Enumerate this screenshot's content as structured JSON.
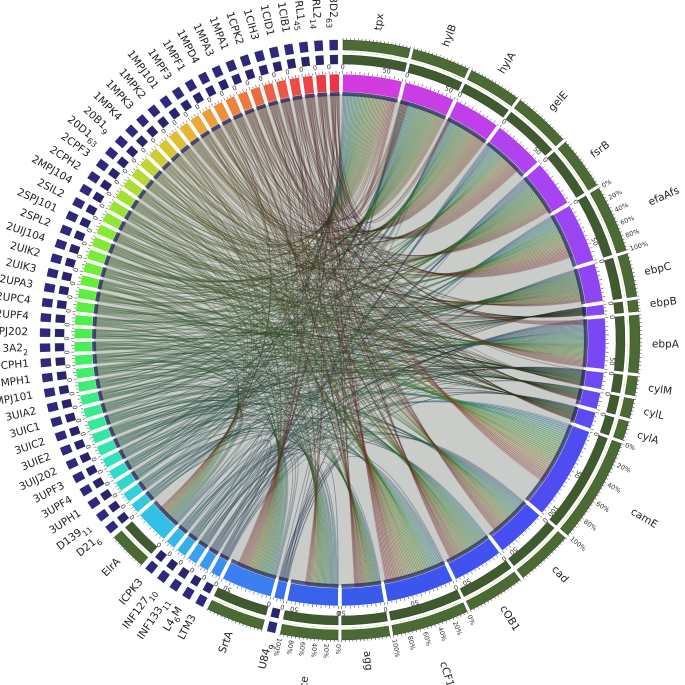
{
  "figure": {
    "type": "circos-chord-diagram",
    "description": "Circular chord diagram linking enterococcal strains (left/bottom arcs) to virulence/pheromone genes (right/top arcs)"
  },
  "colors": {
    "background": "#ffffff",
    "strain_outer_tracks": "#2a2370",
    "gene_outer_tracks": "#3f5a2e",
    "ribbon_base": "#2f3a2a"
  },
  "segments": [
    {
      "id": "tpx",
      "label": "tpx",
      "group": "gene",
      "size": 70,
      "color": "#d23be0",
      "ticks": [
        "0",
        "50"
      ]
    },
    {
      "id": "hylB",
      "label": "hylB",
      "group": "gene",
      "size": 60,
      "color": "#c83ee6",
      "ticks": [
        "0",
        "50"
      ]
    },
    {
      "id": "hylA",
      "label": "hylA",
      "group": "gene",
      "size": 55,
      "color": "#bf40ea",
      "ticks": [
        "0"
      ]
    },
    {
      "id": "gelE",
      "label": "gelE",
      "group": "gene",
      "size": 60,
      "color": "#b241ee",
      "ticks": [
        "0",
        "50"
      ]
    },
    {
      "id": "fsrB",
      "label": "fsrB",
      "group": "gene",
      "size": 55,
      "color": "#a743f0",
      "ticks": [
        "0"
      ]
    },
    {
      "id": "efaAfs",
      "label": "efaAfs",
      "group": "gene",
      "size": 70,
      "color": "#9b44f2",
      "ticks": [
        "0",
        "50"
      ],
      "pct_scale": [
        "0%",
        "20%",
        "40%",
        "60%",
        "80%",
        "100%"
      ]
    },
    {
      "id": "ebpC",
      "label": "ebpC",
      "group": "gene",
      "size": 45,
      "color": "#8f46f2",
      "ticks": [
        "0"
      ]
    },
    {
      "id": "ebpB",
      "label": "ebpB",
      "group": "gene",
      "size": 12,
      "color": "#8447f2",
      "ticks": [
        "0"
      ]
    },
    {
      "id": "ebpA",
      "label": "ebpA",
      "group": "gene",
      "size": 60,
      "color": "#7a48f2",
      "ticks": [
        "0",
        "50"
      ]
    },
    {
      "id": "cylM",
      "label": "cylM",
      "group": "gene",
      "size": 20,
      "color": "#6f49f2",
      "ticks": [
        "0"
      ]
    },
    {
      "id": "cylL",
      "label": "cylL",
      "group": "gene",
      "size": 20,
      "color": "#654af2",
      "ticks": [
        "0"
      ]
    },
    {
      "id": "cylA",
      "label": "cylA",
      "group": "gene",
      "size": 20,
      "color": "#5b4bf2",
      "ticks": [
        "0"
      ]
    },
    {
      "id": "camE",
      "label": "camE",
      "group": "gene",
      "size": 110,
      "color": "#4f4cf2",
      "ticks": [
        "0",
        "50",
        "100"
      ],
      "pct_scale": [
        "0%",
        "20%",
        "40%",
        "60%",
        "80%",
        "100%"
      ]
    },
    {
      "id": "cad",
      "label": "cad",
      "group": "gene",
      "size": 60,
      "color": "#474ff2",
      "ticks": [
        "0",
        "50"
      ]
    },
    {
      "id": "cOB1",
      "label": "cOB1",
      "group": "gene",
      "size": 60,
      "color": "#4152f0",
      "ticks": [
        "0",
        "50"
      ]
    },
    {
      "id": "cCF10",
      "label": "cCF10",
      "group": "gene",
      "size": 80,
      "color": "#3b55ee",
      "ticks": [
        "0",
        "50"
      ],
      "pct_scale": [
        "0%",
        "20%",
        "40%",
        "60%",
        "80%",
        "100%"
      ]
    },
    {
      "id": "agg",
      "label": "agg",
      "group": "gene",
      "size": 50,
      "color": "#395bec",
      "ticks": [
        "0",
        "50"
      ]
    },
    {
      "id": "ace",
      "label": "ace",
      "group": "gene",
      "size": 60,
      "color": "#3862ea",
      "ticks": [
        "0",
        "50"
      ],
      "pct_scale": [
        "0%",
        "20%",
        "40%",
        "60%",
        "80%",
        "100%"
      ]
    },
    {
      "id": "U84_9",
      "label": "U84",
      "sub": "9",
      "group": "strain",
      "size": 12,
      "color": "#3a6ff0",
      "ticks": [
        "0"
      ]
    },
    {
      "id": "SrtA",
      "label": "SrtA",
      "group": "gene",
      "size": 60,
      "color": "#3a7ef0",
      "ticks": [
        "0",
        "50"
      ]
    },
    {
      "id": "LTM3",
      "label": "LTM3",
      "group": "strain",
      "size": 12,
      "color": "#3a8cf0",
      "ticks": [
        "0"
      ]
    },
    {
      "id": "L4_6M",
      "label": "L4",
      "sub": "6",
      "suffix": "M",
      "group": "strain",
      "size": 12,
      "color": "#3a98ee",
      "ticks": [
        "0"
      ]
    },
    {
      "id": "INF133_11",
      "label": "INF133",
      "sub": "11",
      "group": "strain",
      "size": 12,
      "color": "#38a3ec",
      "ticks": [
        "0"
      ]
    },
    {
      "id": "INF127_10",
      "label": "INF127",
      "sub": "10",
      "group": "strain",
      "size": 12,
      "color": "#36aeea",
      "ticks": [
        "0"
      ]
    },
    {
      "id": "ICPK3",
      "label": "ICPK3",
      "group": "strain",
      "size": 12,
      "color": "#34b8e8",
      "ticks": [
        "0"
      ]
    },
    {
      "id": "ElrA",
      "label": "ElrA",
      "group": "gene",
      "size": 40,
      "color": "#33c0e6",
      "ticks": [
        "0"
      ]
    },
    {
      "id": "D21_6",
      "label": "D21",
      "sub": "6",
      "group": "strain",
      "size": 12,
      "color": "#33c8e0",
      "ticks": [
        "0"
      ]
    },
    {
      "id": "D139_11",
      "label": "D139",
      "sub": "11",
      "group": "strain",
      "size": 12,
      "color": "#33cfda",
      "ticks": [
        "0"
      ]
    },
    {
      "id": "3UPH1",
      "label": "3UPH1",
      "group": "strain",
      "size": 12,
      "color": "#33d5d2",
      "ticks": [
        "0"
      ]
    },
    {
      "id": "3UPF4",
      "label": "3UPF4",
      "group": "strain",
      "size": 12,
      "color": "#33dac8",
      "ticks": [
        "0"
      ]
    },
    {
      "id": "3UPF3",
      "label": "3UPF3",
      "group": "strain",
      "size": 12,
      "color": "#33dfbe",
      "ticks": [
        "0"
      ]
    },
    {
      "id": "3UIJ202",
      "label": "3UIJ202",
      "group": "strain",
      "size": 12,
      "color": "#34e2b2",
      "ticks": [
        "0"
      ]
    },
    {
      "id": "3UIE2",
      "label": "3UIE2",
      "group": "strain",
      "size": 12,
      "color": "#36e5a6",
      "ticks": [
        "0"
      ]
    },
    {
      "id": "3UIC2",
      "label": "3UIC2",
      "group": "strain",
      "size": 12,
      "color": "#38e79a",
      "ticks": [
        "0"
      ]
    },
    {
      "id": "3UIC1",
      "label": "3UIC1",
      "group": "strain",
      "size": 12,
      "color": "#3ae98e",
      "ticks": [
        "0"
      ]
    },
    {
      "id": "3UIA2",
      "label": "3UIA2",
      "group": "strain",
      "size": 12,
      "color": "#3ceb82",
      "ticks": [
        "0"
      ]
    },
    {
      "id": "3MPJ101",
      "label": "3MPJ101",
      "group": "strain",
      "size": 12,
      "color": "#3eec76",
      "ticks": [
        "0"
      ]
    },
    {
      "id": "3MPH1",
      "label": "3MPH1",
      "group": "strain",
      "size": 12,
      "color": "#40ed6c",
      "ticks": [
        "0"
      ]
    },
    {
      "id": "3CPH1",
      "label": "3CPH1",
      "group": "strain",
      "size": 12,
      "color": "#43ee62",
      "ticks": [
        "0"
      ]
    },
    {
      "id": "3A2_2",
      "label": "3A2",
      "sub": "2",
      "group": "strain",
      "size": 12,
      "color": "#46ee58",
      "ticks": [
        "0"
      ]
    },
    {
      "id": "2UPJ202",
      "label": "2UPJ202",
      "group": "strain",
      "size": 12,
      "color": "#4aee50",
      "ticks": [
        "0"
      ]
    },
    {
      "id": "2UPF4",
      "label": "2UPF4",
      "group": "strain",
      "size": 12,
      "color": "#50ee48",
      "ticks": [
        "0"
      ]
    },
    {
      "id": "2UPC4",
      "label": "2UPC4",
      "group": "strain",
      "size": 12,
      "color": "#58ee42",
      "ticks": [
        "0"
      ]
    },
    {
      "id": "2UPA3",
      "label": "2UPA3",
      "group": "strain",
      "size": 12,
      "color": "#60ee3e",
      "ticks": [
        "0"
      ]
    },
    {
      "id": "2UIK3",
      "label": "2UIK3",
      "group": "strain",
      "size": 12,
      "color": "#68ee3a",
      "ticks": [
        "0"
      ]
    },
    {
      "id": "2UIK2",
      "label": "2UIK2",
      "group": "strain",
      "size": 12,
      "color": "#70ed38",
      "ticks": [
        "0"
      ]
    },
    {
      "id": "2UIJ104",
      "label": "2UIJ104",
      "group": "strain",
      "size": 12,
      "color": "#78ec36",
      "ticks": [
        "0"
      ]
    },
    {
      "id": "2SPL2",
      "label": "2SPL2",
      "group": "strain",
      "size": 12,
      "color": "#80ea36",
      "ticks": [
        "0"
      ]
    },
    {
      "id": "2SPJ101",
      "label": "2SPJ101",
      "group": "strain",
      "size": 12,
      "color": "#88e836",
      "ticks": [
        "0"
      ]
    },
    {
      "id": "2SIL2",
      "label": "2SIL2",
      "group": "strain",
      "size": 12,
      "color": "#90e636",
      "ticks": [
        "0"
      ]
    },
    {
      "id": "2MPJ104",
      "label": "2MPJ104",
      "group": "strain",
      "size": 12,
      "color": "#98e336",
      "ticks": [
        "0"
      ]
    },
    {
      "id": "2CPH2",
      "label": "2CPH2",
      "group": "strain",
      "size": 12,
      "color": "#a2e036",
      "ticks": [
        "0"
      ]
    },
    {
      "id": "2CPF3",
      "label": "2CPF3",
      "group": "strain",
      "size": 12,
      "color": "#acdc36",
      "ticks": [
        "0"
      ]
    },
    {
      "id": "20D1_63",
      "label": "20D1",
      "sub": "63",
      "group": "strain",
      "size": 12,
      "color": "#b6d836",
      "ticks": [
        "0"
      ]
    },
    {
      "id": "20B1_9",
      "label": "20B1",
      "sub": "9",
      "group": "strain",
      "size": 12,
      "color": "#c2d336",
      "ticks": [
        "0"
      ]
    },
    {
      "id": "1MPK4",
      "label": "1MPK4",
      "group": "strain",
      "size": 12,
      "color": "#cccd36",
      "ticks": [
        "0"
      ]
    },
    {
      "id": "1MPK3",
      "label": "1MPK3",
      "group": "strain",
      "size": 12,
      "color": "#d6c636",
      "ticks": [
        "0"
      ]
    },
    {
      "id": "1MPK2",
      "label": "1MPK2",
      "group": "strain",
      "size": 12,
      "color": "#dfbe36",
      "ticks": [
        "0"
      ]
    },
    {
      "id": "1MPJ101",
      "label": "1MPJ101",
      "group": "strain",
      "size": 12,
      "color": "#e6b436",
      "ticks": [
        "0"
      ]
    },
    {
      "id": "1MPF3",
      "label": "1MPF3",
      "group": "strain",
      "size": 12,
      "color": "#eaa838",
      "ticks": [
        "0"
      ]
    },
    {
      "id": "1MPF1",
      "label": "1MPF1",
      "group": "strain",
      "size": 12,
      "color": "#ec9c3a",
      "ticks": [
        "0"
      ]
    },
    {
      "id": "1MPD4",
      "label": "1MPD4",
      "group": "strain",
      "size": 12,
      "color": "#ec903c",
      "ticks": [
        "0"
      ]
    },
    {
      "id": "1MPA3",
      "label": "1MPA3",
      "group": "strain",
      "size": 12,
      "color": "#ec843e",
      "ticks": [
        "0"
      ]
    },
    {
      "id": "1MPA1",
      "label": "1MPA1",
      "group": "strain",
      "size": 12,
      "color": "#ec7840",
      "ticks": [
        "0"
      ]
    },
    {
      "id": "1CPK2",
      "label": "1CPK2",
      "group": "strain",
      "size": 12,
      "color": "#ec6c42",
      "ticks": [
        "0"
      ]
    },
    {
      "id": "1CIH3",
      "label": "1CIH3",
      "group": "strain",
      "size": 12,
      "color": "#ec6044",
      "ticks": [
        "0"
      ]
    },
    {
      "id": "1CID1",
      "label": "1CID1",
      "group": "strain",
      "size": 12,
      "color": "#ec5646",
      "ticks": [
        "0"
      ]
    },
    {
      "id": "1CIB1",
      "label": "1CIB1",
      "group": "strain",
      "size": 12,
      "color": "#ec4c46",
      "ticks": [
        "0"
      ]
    },
    {
      "id": "18RL1_45",
      "label": "18RL1",
      "sub": "45",
      "group": "strain",
      "size": 12,
      "color": "#ec4446",
      "ticks": [
        "0"
      ]
    },
    {
      "id": "17RL2_14",
      "label": "17RL2",
      "sub": "14",
      "group": "strain",
      "size": 12,
      "color": "#ea3c46",
      "ticks": [
        "0"
      ]
    },
    {
      "id": "13D2_63",
      "label": "13D2",
      "sub": "63",
      "group": "strain",
      "size": 12,
      "color": "#e83646",
      "ticks": [
        "0"
      ]
    }
  ],
  "percent_scale_labels": [
    "0%",
    "20%",
    "40%",
    "60%",
    "80%",
    "100%"
  ]
}
